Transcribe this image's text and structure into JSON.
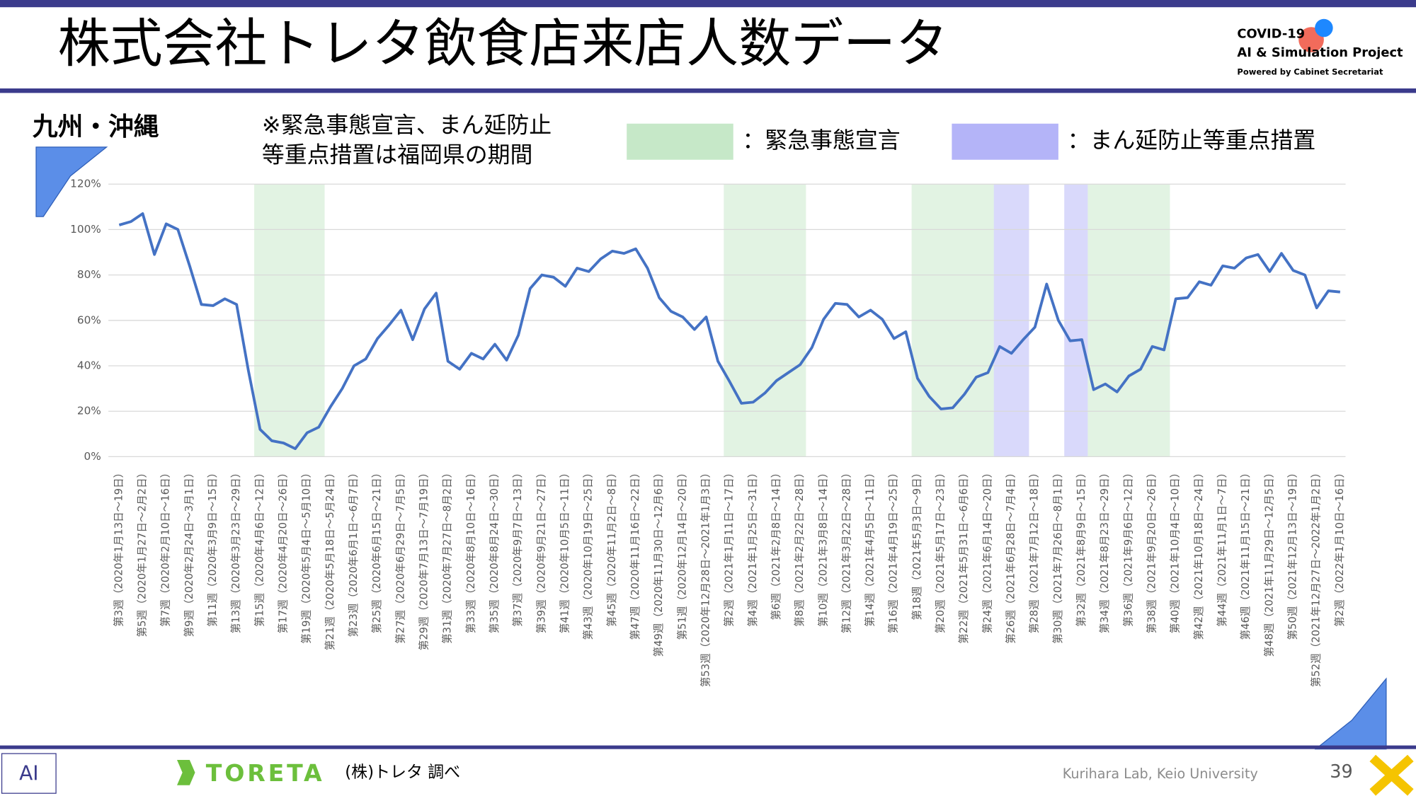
{
  "header": {
    "title": "株式会社トレタ飲食店来店人数データ",
    "project": [
      "COVID-19",
      "AI & Simulation Project",
      "Powered by Cabinet Secretariat"
    ]
  },
  "region": "九州・沖縄",
  "note": [
    "※緊急事態宣言、まん延防止",
    "等重点措置は福岡県の期間"
  ],
  "footer": {
    "brand": "TORETA",
    "source": "(株)トレタ 調べ",
    "lab": "Kurihara Lab, Keio University",
    "page": "39"
  },
  "chart_data": {
    "type": "line",
    "color": "#4472c4",
    "grid": true,
    "ylim": [
      0,
      120
    ],
    "yticks": [
      {
        "value": 0,
        "label": "0%"
      },
      {
        "value": 20,
        "label": "20%"
      },
      {
        "value": 40,
        "label": "40%"
      },
      {
        "value": 60,
        "label": "60%"
      },
      {
        "value": 80,
        "label": "80%"
      },
      {
        "value": 100,
        "label": "100%"
      },
      {
        "value": 120,
        "label": "120%"
      }
    ],
    "legend": [
      {
        "label": "：緊急事態宣言",
        "color": "#c6e8c8",
        "periods": [
          [
            11.5,
            17.5
          ],
          [
            51.5,
            58.5
          ],
          [
            67.5,
            74.5
          ],
          [
            82.5,
            89.5
          ]
        ]
      },
      {
        "label": "：まん延防止等重点措置",
        "color": "#b4b4f8",
        "periods": [
          [
            74.5,
            77.5
          ],
          [
            80.5,
            82.5
          ]
        ]
      }
    ],
    "categories": [
      "第3週（2020年1月13日～19日）",
      null,
      "第5週（2020年1月27日～2月2日）",
      null,
      "第7週（2020年2月10日～16日）",
      null,
      "第9週（2020年2月24日～3月1日）",
      null,
      "第11週（2020年3月9日～15日）",
      null,
      "第13週（2020年3月23日～29日）",
      null,
      "第15週（2020年4月6日～12日）",
      null,
      "第17週（2020年4月20日～26日）",
      null,
      "第19週（2020年5月4日～5月10日）",
      null,
      "第21週（2020年5月18日～5月24日）",
      null,
      "第23週（2020年6月1日～6月7日）",
      null,
      "第25週（2020年6月15日～21日）",
      null,
      "第27週（2020年6月29日～7月5日）",
      null,
      "第29週（2020年7月13日～7月19日）",
      null,
      "第31週（2020年7月27日～8月2日）",
      null,
      "第33週（2020年8月10日～16日）",
      null,
      "第35週（2020年8月24日～30日）",
      null,
      "第37週（2020年9月7日～13日）",
      null,
      "第39週（2020年9月21日～27日）",
      null,
      "第41週（2020年10月5日～11日）",
      null,
      "第43週（2020年10月19日～25日）",
      null,
      "第45週（2020年11月2日～8日）",
      null,
      "第47週（2020年11月16日～22日）",
      null,
      "第49週（2020年11月30日～12月6日）",
      null,
      "第51週（2020年12月14日～20日）",
      null,
      "第53週（2020年12月28日～2021年1月3日）",
      null,
      "第2週（2021年1月11日～17日）",
      null,
      "第4週（2021年1月25日～31日）",
      null,
      "第6週（2021年2月8日～14日）",
      null,
      "第8週（2021年2月22日～28日）",
      null,
      "第10週（2021年3月8日～14日）",
      null,
      "第12週（2021年3月22日～28日）",
      null,
      "第14週（2021年4月5日～11日）",
      null,
      "第16週（2021年4月19日～25日）",
      null,
      "第18週（2021年5月3日～9日）",
      null,
      "第20週（2021年5月17日～23日）",
      null,
      "第22週（2021年5月31日～6月6日）",
      null,
      "第24週（2021年6月14日～20日）",
      null,
      "第26週（2021年6月28日～7月4日）",
      null,
      "第28週（2021年7月12日～18日）",
      null,
      "第30週（2021年7月26日～8月1日）",
      null,
      "第32週（2021年8月9日～15日）",
      null,
      "第34週（2021年8月23日～29日）",
      null,
      "第36週（2021年9月6日～12日）",
      null,
      "第38週（2021年9月20日～26日）",
      null,
      "第40週（2021年10月4日～10日）",
      null,
      "第42週（2021年10月18日～24日）",
      null,
      "第44週（2021年11月1日～7日）",
      null,
      "第46週（2021年11月15日～21日）",
      null,
      "第48週（2021年11月29日～12月5日）",
      null,
      "第50週（2021年12月13日～19日）",
      null,
      "第52週（2021年12月27日～2022年1月2日）",
      null,
      "第2週（2022年1月10日～16日）"
    ],
    "values": [
      102,
      103.5,
      107,
      89,
      102.5,
      100,
      84,
      67,
      66.5,
      69.5,
      67,
      38,
      12,
      7,
      6,
      3.5,
      10.5,
      13,
      22,
      30,
      40,
      43,
      52,
      58,
      64.5,
      51.5,
      65,
      72,
      42,
      38.5,
      45.5,
      43,
      49.5,
      42.5,
      53.5,
      74,
      80,
      79,
      75,
      83,
      81.5,
      87,
      90.5,
      89.5,
      91.5,
      83,
      70,
      64,
      61.5,
      56,
      61.5,
      42,
      33,
      23.5,
      24,
      28,
      33.5,
      37,
      40.5,
      48,
      60.5,
      67.5,
      67,
      61.5,
      64.5,
      60.5,
      52,
      55,
      34.5,
      26.5,
      21,
      21.5,
      27.5,
      35,
      37,
      48.5,
      45.5,
      51.5,
      57,
      76,
      60,
      51,
      51.5,
      29.5,
      32,
      28.5,
      35.5,
      38.5,
      48.5,
      47,
      69.5,
      70,
      77,
      75.5,
      84,
      83,
      87.5,
      89,
      81.5,
      89.5,
      82,
      80,
      65.5,
      73,
      72.5
    ]
  }
}
